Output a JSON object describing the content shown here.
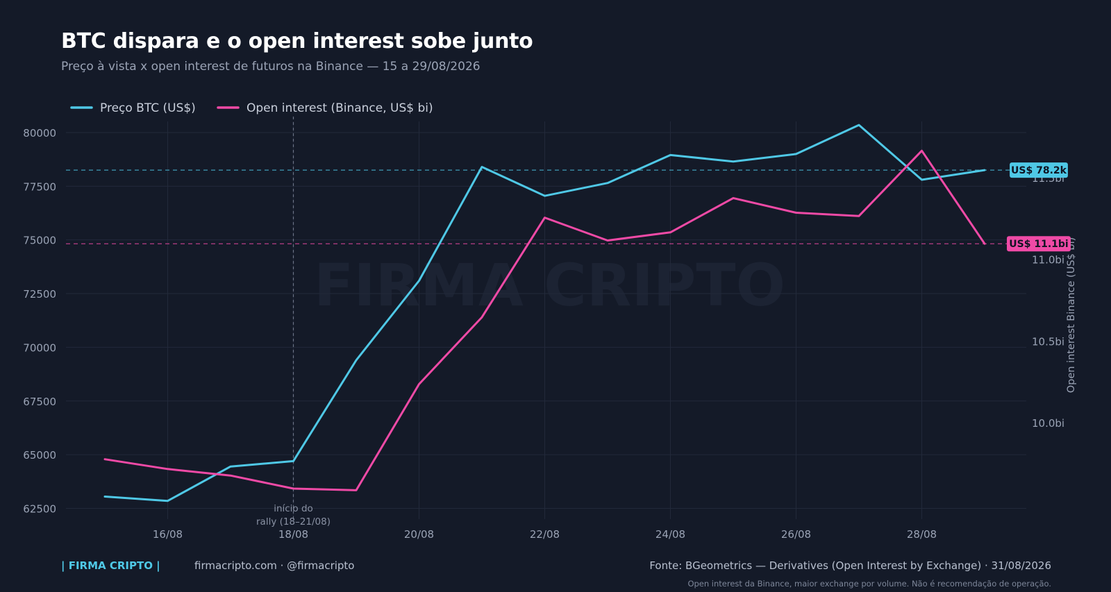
{
  "header": {
    "title": "BTC dispara e o open interest sobe junto",
    "subtitle": "Preço à vista x open interest de futuros na Binance — 15 a 29/08/2026"
  },
  "colors": {
    "background": "#141a28",
    "btc": "#4fc8e6",
    "oi": "#ef4aa6",
    "grid": "#22293a",
    "axis_text": "#9aa3b5"
  },
  "watermark": "FIRMA CRIPTO",
  "chart_data": {
    "type": "line",
    "title": "BTC dispara e o open interest sobe junto",
    "subtitle": "Preço à vista x open interest de futuros na Binance — 15 a 29/08/2026",
    "x": [
      "15/08",
      "16/08",
      "17/08",
      "18/08",
      "19/08",
      "20/08",
      "21/08",
      "22/08",
      "23/08",
      "24/08",
      "25/08",
      "26/08",
      "27/08",
      "28/08",
      "29/08"
    ],
    "x_tick_labels": [
      "16/08",
      "18/08",
      "20/08",
      "22/08",
      "24/08",
      "26/08",
      "28/08"
    ],
    "series": [
      {
        "name": "Preço BTC (US$)",
        "axis": "left",
        "color": "#4fc8e6",
        "values": [
          63050,
          62850,
          64450,
          64700,
          69400,
          73100,
          78400,
          77050,
          77650,
          78950,
          78650,
          79000,
          80350,
          77800,
          78250
        ]
      },
      {
        "name": "Open interest (Binance, US$ bi)",
        "axis": "right",
        "color": "#ef4aa6",
        "values": [
          9.78,
          9.72,
          9.68,
          9.6,
          9.59,
          10.24,
          10.65,
          11.26,
          11.12,
          11.17,
          11.38,
          11.29,
          11.27,
          11.67,
          11.1
        ]
      }
    ],
    "y_left": {
      "ylim": [
        62000,
        81000
      ],
      "ticks": [
        62500,
        65000,
        67500,
        70000,
        72500,
        75000,
        77500,
        80000
      ],
      "tick_labels": [
        "62500",
        "65000",
        "67500",
        "70000",
        "72500",
        "75000",
        "77500",
        "80000"
      ]
    },
    "y_right": {
      "label": "Open interest Binance (US$ bi)",
      "ylim": [
        9.413,
        11.913
      ],
      "ticks": [
        10.0,
        10.5,
        11.0,
        11.5
      ],
      "tick_labels": [
        "10.0bi",
        "10.5bi",
        "11.0bi",
        "11.5bi"
      ]
    },
    "reference_lines": [
      {
        "series": "Preço BTC (US$)",
        "value": 78250,
        "label": "US$ 78.2k"
      },
      {
        "series": "Open interest (Binance, US$ bi)",
        "value": 11.1,
        "label": "US$ 11.1bi"
      }
    ],
    "annotations": [
      {
        "x": "18/08",
        "lines": [
          "início do",
          "rally (18–21/08)"
        ]
      }
    ],
    "grid": true,
    "legend": "top-left"
  },
  "footer": {
    "brand": "| FIRMA CRIPTO |",
    "links": "firmacripto.com  ·  @firmacripto",
    "source": "Fonte: BGeometrics — Derivatives (Open Interest by Exchange)  ·  31/08/2026",
    "note": "Open interest da Binance, maior exchange por volume. Não é recomendação de operação."
  }
}
